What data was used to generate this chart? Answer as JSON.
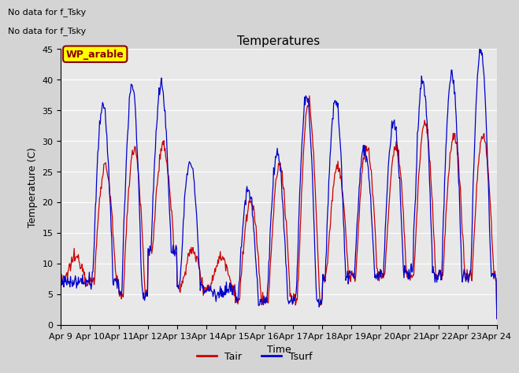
{
  "title": "Temperatures",
  "xlabel": "Time",
  "ylabel": "Temperature (C)",
  "ylim": [
    0,
    45
  ],
  "xlim_days": 15,
  "xtick_labels": [
    "Apr 9",
    "Apr 10",
    "Apr 11",
    "Apr 12",
    "Apr 13",
    "Apr 14",
    "Apr 15",
    "Apr 16",
    "Apr 17",
    "Apr 18",
    "Apr 19",
    "Apr 20",
    "Apr 21",
    "Apr 22",
    "Apr 23",
    "Apr 24"
  ],
  "ytick_values": [
    0,
    5,
    10,
    15,
    20,
    25,
    30,
    35,
    40,
    45
  ],
  "no_data_text": [
    "No data for f_Tsky",
    "No data for f_Tsky"
  ],
  "region_label": "WP_arable",
  "legend_entries": [
    "Tair",
    "Tsurf"
  ],
  "tair_color": "#cc0000",
  "tsurf_color": "#0000cc",
  "fig_facecolor": "#d4d4d4",
  "ax_facecolor": "#e8e8e8",
  "grid_color": "#ffffff",
  "title_fontsize": 11,
  "axis_label_fontsize": 9,
  "tick_fontsize": 8,
  "no_data_fontsize": 8,
  "wp_fontsize": 9,
  "legend_fontsize": 9,
  "day_peaks_air": [
    11,
    26,
    29,
    29,
    12,
    11,
    20,
    26,
    36,
    26,
    29,
    29,
    33,
    31,
    31
  ],
  "day_peaks_surf": [
    7,
    36,
    39,
    39,
    27,
    5,
    22,
    28,
    37,
    37,
    29,
    33,
    40,
    41,
    45
  ],
  "day_mins": [
    7,
    7,
    5,
    12,
    6,
    6,
    4,
    4,
    4,
    8,
    8,
    8,
    8,
    8,
    8
  ],
  "points_per_day": 48
}
